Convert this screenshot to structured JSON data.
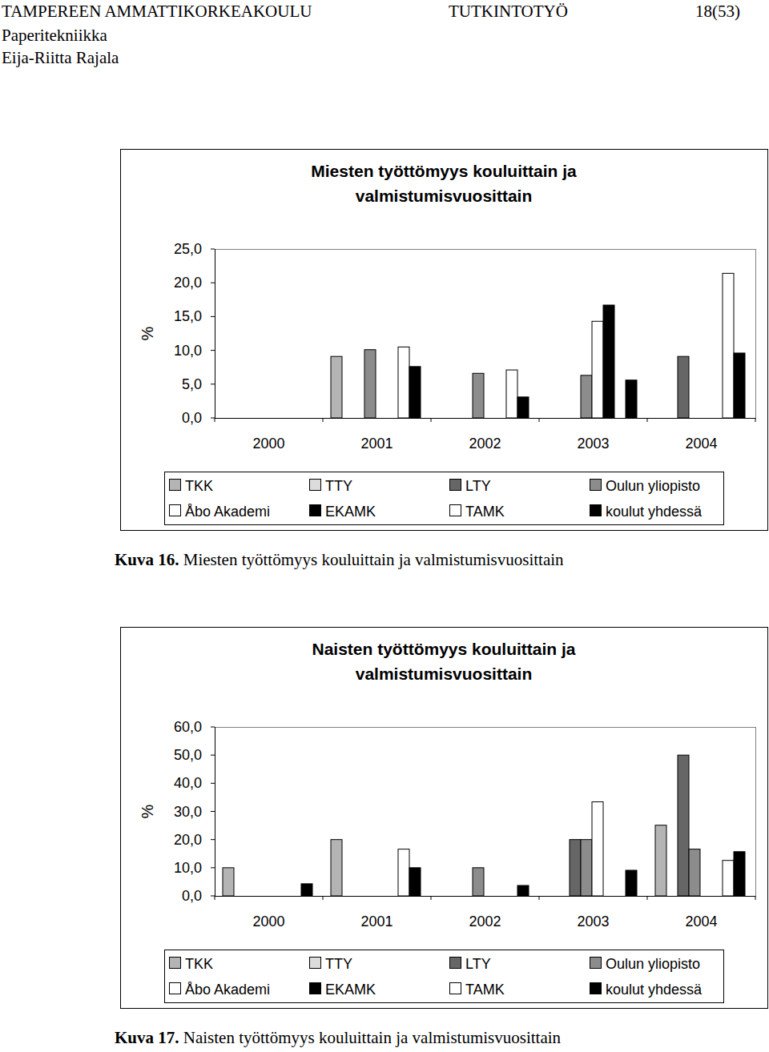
{
  "header": {
    "left": "TAMPEREEN AMMATTIKORKEAKOULU",
    "center": "TUTKINTOTYÖ",
    "right": "18(53)",
    "lines": [
      "Paperitekniikka",
      "Eija-Riitta Rajala"
    ]
  },
  "captions": [
    {
      "label": "Kuva 16.",
      "text": "Miesten työttömyys kouluittain ja valmistumisvuosittain"
    },
    {
      "label": "Kuva 17.",
      "text": "Naisten työttömyys kouluittain ja valmistumisvuosittain"
    }
  ],
  "chart_data": [
    {
      "type": "bar",
      "title": "Miesten työttömyys kouluittain ja valmistumisvuosittain",
      "y_label": "%",
      "categories": [
        "2000",
        "2001",
        "2002",
        "2003",
        "2004"
      ],
      "series": [
        {
          "name": "TKK",
          "color": "#b4b4b4",
          "values": [
            null,
            9.1,
            null,
            null,
            null
          ]
        },
        {
          "name": "TTY",
          "color": "#dcdcdc",
          "values": [
            null,
            null,
            null,
            null,
            null
          ]
        },
        {
          "name": "LTY",
          "color": "#666666",
          "values": [
            null,
            null,
            null,
            null,
            9.1
          ]
        },
        {
          "name": "Oulun yliopisto",
          "color": "#8c8c8c",
          "values": [
            null,
            10.1,
            6.6,
            6.3,
            null
          ]
        },
        {
          "name": "Åbo Akademi",
          "color": "#ffffff",
          "values": [
            null,
            null,
            null,
            14.3,
            null
          ]
        },
        {
          "name": "EKAMK",
          "color": "#000000",
          "values": [
            null,
            null,
            null,
            16.7,
            null
          ]
        },
        {
          "name": "TAMK",
          "color": "#ffffff",
          "values": [
            null,
            10.5,
            7.1,
            null,
            21.4
          ]
        },
        {
          "name": "koulut yhdessä",
          "color": "#000000",
          "values": [
            null,
            7.6,
            3.1,
            5.6,
            9.6
          ]
        }
      ],
      "ylim": [
        0,
        25
      ],
      "yticks": [
        {
          "value": 0,
          "label": "0,0"
        },
        {
          "value": 5,
          "label": "5,0"
        },
        {
          "value": 10,
          "label": "10,0"
        },
        {
          "value": 15,
          "label": "15,0"
        },
        {
          "value": 20,
          "label": "20,0"
        },
        {
          "value": 25,
          "label": "25,0"
        }
      ],
      "grid": false,
      "legend": "bottom"
    },
    {
      "type": "bar",
      "title": "Naisten työttömyys kouluittain ja valmistumisvuosittain",
      "y_label": "%",
      "categories": [
        "2000",
        "2001",
        "2002",
        "2003",
        "2004"
      ],
      "series": [
        {
          "name": "TKK",
          "color": "#b4b4b4",
          "values": [
            10.0,
            20.0,
            null,
            null,
            25.1
          ]
        },
        {
          "name": "TTY",
          "color": "#dcdcdc",
          "values": [
            null,
            null,
            null,
            null,
            null
          ]
        },
        {
          "name": "LTY",
          "color": "#666666",
          "values": [
            null,
            null,
            null,
            20.0,
            50.0
          ]
        },
        {
          "name": "Oulun yliopisto",
          "color": "#8c8c8c",
          "values": [
            null,
            null,
            10.0,
            20.0,
            16.6
          ]
        },
        {
          "name": "Åbo Akademi",
          "color": "#ffffff",
          "values": [
            null,
            null,
            null,
            33.4,
            null
          ]
        },
        {
          "name": "EKAMK",
          "color": "#000000",
          "values": [
            null,
            null,
            null,
            null,
            null
          ]
        },
        {
          "name": "TAMK",
          "color": "#ffffff",
          "values": [
            null,
            16.6,
            null,
            null,
            12.6
          ]
        },
        {
          "name": "koulut yhdessä",
          "color": "#000000",
          "values": [
            4.3,
            10.0,
            3.7,
            9.1,
            15.7
          ]
        }
      ],
      "ylim": [
        0,
        60
      ],
      "yticks": [
        {
          "value": 0,
          "label": "0,0"
        },
        {
          "value": 10,
          "label": "10,0"
        },
        {
          "value": 20,
          "label": "20,0"
        },
        {
          "value": 30,
          "label": "30,0"
        },
        {
          "value": 40,
          "label": "40,0"
        },
        {
          "value": 50,
          "label": "50,0"
        },
        {
          "value": 60,
          "label": "60,0"
        }
      ],
      "grid": false,
      "legend": "bottom"
    }
  ]
}
